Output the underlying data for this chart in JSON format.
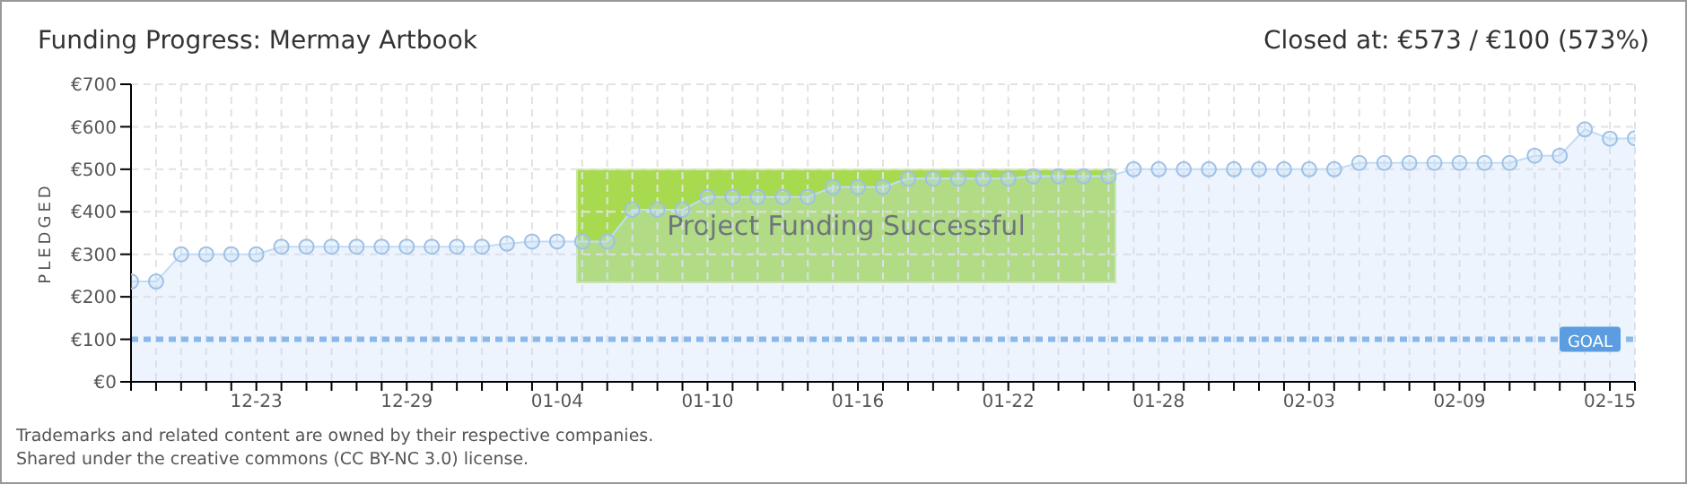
{
  "chart_data": {
    "type": "area",
    "title": "Funding Progress: Mermay Artbook",
    "subtitle": "Closed at:  €573 /  €100 (573%)",
    "ylabel": "PLEDGED",
    "categories": [
      null,
      null,
      null,
      null,
      null,
      "12-23",
      null,
      null,
      null,
      null,
      null,
      "12-29",
      null,
      null,
      null,
      null,
      null,
      "01-04",
      null,
      null,
      null,
      null,
      null,
      "01-10",
      null,
      null,
      null,
      null,
      null,
      "01-16",
      null,
      null,
      null,
      null,
      null,
      "01-22",
      null,
      null,
      null,
      null,
      null,
      "01-28",
      null,
      null,
      null,
      null,
      null,
      "02-03",
      null,
      null,
      null,
      null,
      null,
      "02-09",
      null,
      null,
      null,
      null,
      null,
      "02-15",
      null
    ],
    "series": [
      {
        "color": "#c2dcf7",
        "values": [
          236,
          236,
          300,
          300,
          300,
          300,
          318,
          318,
          318,
          318,
          318,
          318,
          318,
          318,
          318,
          325,
          330,
          330,
          330,
          330,
          405,
          405,
          405,
          435,
          435,
          435,
          435,
          435,
          458,
          458,
          458,
          478,
          478,
          478,
          478,
          478,
          484,
          484,
          484,
          484,
          500,
          500,
          500,
          500,
          500,
          500,
          500,
          500,
          500,
          515,
          515,
          515,
          515,
          515,
          515,
          515,
          532,
          532,
          594,
          572,
          573
        ]
      }
    ],
    "ylim": [
      0,
      700
    ],
    "yticks": [
      {
        "value": 0,
        "label": "€0"
      },
      {
        "value": 100,
        "label": "€100"
      },
      {
        "value": 200,
        "label": "€200"
      },
      {
        "value": 300,
        "label": "€300"
      },
      {
        "value": 400,
        "label": "€400"
      },
      {
        "value": 500,
        "label": "€500"
      },
      {
        "value": 600,
        "label": "€600"
      },
      {
        "value": 700,
        "label": "€700"
      }
    ],
    "grid": true,
    "marker": "circle",
    "legend": false,
    "ref_lines": [
      {
        "axis": "y",
        "value": 100,
        "label": "GOAL",
        "color": "#8ab8ea",
        "line_style": "dotted"
      }
    ],
    "annotations": [
      "Project Funding Successful",
      "Trademarks and related content are owned by their respective companies.",
      "Shared under the creative commons (CC BY-NC 3.0) license."
    ]
  }
}
